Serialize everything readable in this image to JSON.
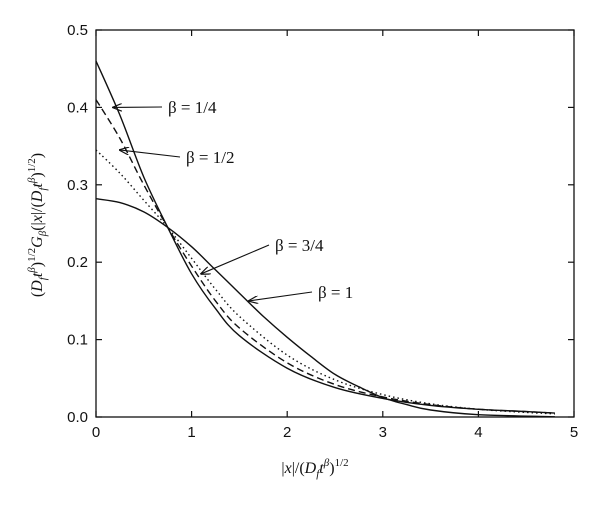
{
  "chart_data": {
    "type": "line",
    "title": "",
    "xlabel": "|x|/(D_f t^β)^{1/2}",
    "ylabel": "(D_f t^β)^{1/2} G_β(|x|/(D_f t^β)^{1/2})",
    "xlim": [
      0,
      5
    ],
    "ylim": [
      0,
      0.5
    ],
    "x_ticks": [
      "0",
      "1",
      "2",
      "3",
      "4",
      "5"
    ],
    "y_ticks": [
      "0.0",
      "0.1",
      "0.2",
      "0.3",
      "0.4",
      "0.5"
    ],
    "grid": false,
    "legend": "none",
    "series": [
      {
        "name": "β = 1/4",
        "style": "solid",
        "x": [
          0,
          0.25,
          0.5,
          0.75,
          1.0,
          1.25,
          1.5,
          2.0,
          2.5,
          3.0,
          3.5,
          4.0,
          4.5,
          4.8
        ],
        "y": [
          0.46,
          0.39,
          0.31,
          0.245,
          0.185,
          0.14,
          0.105,
          0.063,
          0.038,
          0.024,
          0.015,
          0.01,
          0.007,
          0.005
        ]
      },
      {
        "name": "β = 1/2",
        "style": "dashed",
        "x": [
          0,
          0.25,
          0.5,
          0.75,
          1.0,
          1.25,
          1.5,
          2.0,
          2.5,
          3.0,
          3.5,
          4.0,
          4.5,
          4.8
        ],
        "y": [
          0.41,
          0.36,
          0.3,
          0.245,
          0.195,
          0.15,
          0.115,
          0.07,
          0.042,
          0.026,
          0.016,
          0.01,
          0.007,
          0.005
        ]
      },
      {
        "name": "β = 3/4",
        "style": "dotted",
        "x": [
          0,
          0.25,
          0.5,
          0.75,
          1.0,
          1.25,
          1.5,
          2.0,
          2.5,
          3.0,
          3.5,
          4.0,
          4.5,
          4.8
        ],
        "y": [
          0.345,
          0.315,
          0.28,
          0.245,
          0.205,
          0.165,
          0.13,
          0.08,
          0.048,
          0.029,
          0.017,
          0.01,
          0.006,
          0.004
        ]
      },
      {
        "name": "β = 1",
        "style": "solid",
        "x": [
          0,
          0.25,
          0.5,
          0.75,
          1.0,
          1.25,
          1.5,
          1.75,
          2.0,
          2.25,
          2.5,
          2.75,
          3.0,
          3.25,
          3.5,
          4.0,
          4.8
        ],
        "y": [
          0.282,
          0.277,
          0.265,
          0.245,
          0.22,
          0.19,
          0.16,
          0.13,
          0.103,
          0.078,
          0.055,
          0.039,
          0.025,
          0.016,
          0.009,
          0.003,
          0.0003
        ]
      }
    ],
    "annotations": [
      {
        "text": "β = 1/4",
        "points_to": {
          "x": 0.18,
          "y": 0.4
        }
      },
      {
        "text": "β = 1/2",
        "points_to": {
          "x": 0.25,
          "y": 0.345
        }
      },
      {
        "text": "β = 3/4",
        "points_to": {
          "x": 1.1,
          "y": 0.185
        }
      },
      {
        "text": "β = 1",
        "points_to": {
          "x": 1.6,
          "y": 0.15
        }
      }
    ]
  }
}
